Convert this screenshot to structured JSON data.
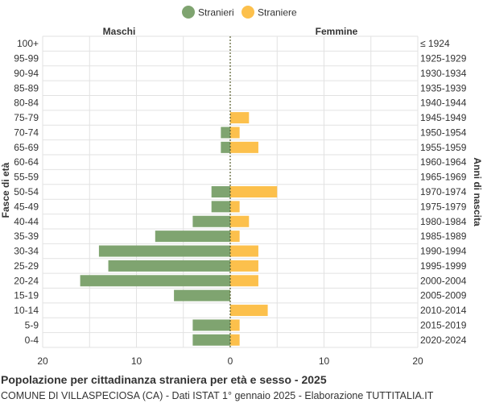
{
  "chart_data": {
    "type": "bar",
    "orientation": "horizontal-population-pyramid",
    "title": "Popolazione per cittadinanza straniera per età e sesso - 2025",
    "subtitle": "COMUNE DI VILLASPECIOSA (CA) - Dati ISTAT 1° gennaio 2025 - Elaborazione TUTTITALIA.IT",
    "left_header": "Maschi",
    "right_header": "Femmine",
    "ylabel_left": "Fasce di età",
    "ylabel_right": "Anni di nascita",
    "categories": [
      "100+",
      "95-99",
      "90-94",
      "85-89",
      "80-84",
      "75-79",
      "70-74",
      "65-69",
      "60-64",
      "55-59",
      "50-54",
      "45-49",
      "40-44",
      "35-39",
      "30-34",
      "25-29",
      "20-24",
      "15-19",
      "10-14",
      "5-9",
      "0-4"
    ],
    "birth_years": [
      "≤ 1924",
      "1925-1929",
      "1930-1934",
      "1935-1939",
      "1940-1944",
      "1945-1949",
      "1950-1954",
      "1955-1959",
      "1960-1964",
      "1965-1969",
      "1970-1974",
      "1975-1979",
      "1980-1984",
      "1985-1989",
      "1990-1994",
      "1995-1999",
      "2000-2004",
      "2005-2009",
      "2010-2014",
      "2015-2019",
      "2020-2024"
    ],
    "x_ticks": [
      "20",
      "10",
      "0",
      "10",
      "20"
    ],
    "xlim": [
      -20,
      20
    ],
    "grid": true,
    "legend_position": "top-center",
    "series": [
      {
        "name": "Stranieri",
        "color": "#7fa470",
        "values": [
          0,
          0,
          0,
          0,
          0,
          0,
          1,
          1,
          0,
          0,
          2,
          2,
          4,
          8,
          14,
          13,
          16,
          6,
          0,
          4,
          4
        ]
      },
      {
        "name": "Straniere",
        "color": "#fcc04c",
        "values": [
          0,
          0,
          0,
          0,
          0,
          2,
          1,
          3,
          0,
          0,
          5,
          1,
          2,
          1,
          3,
          3,
          3,
          0,
          4,
          1,
          1
        ]
      }
    ]
  }
}
